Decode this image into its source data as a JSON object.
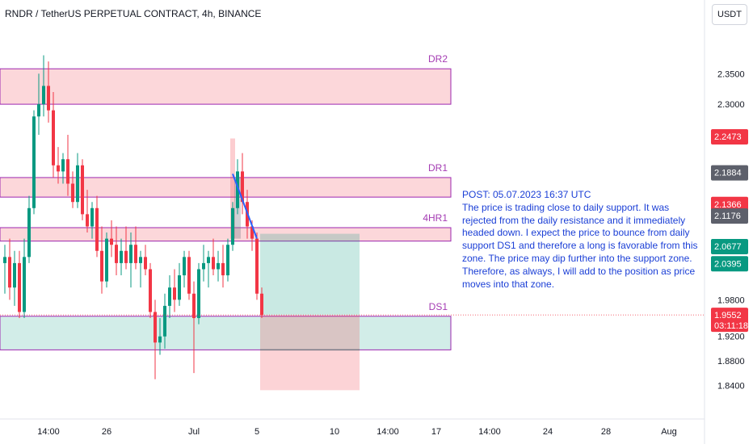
{
  "header": {
    "title": "RNDR / TetherUS PERPETUAL CONTRACT, 4h, BINANCE",
    "currency": "USDT"
  },
  "note": {
    "text": "POST: 05.07.2023 16:37 UTC\nThe price is trading close to daily support. It was rejected from the daily resistance and it immediately headed down. I expect the price to bounce from daily support DS1 and therefore a long is favorable from this zone. The price may dip further into the support zone. Therefore, as always, I will add to the position as price moves into that zone."
  },
  "chart_data": {
    "type": "candlestick",
    "symbol": "RNDR / TetherUS PERPETUAL CONTRACT",
    "interval": "4h",
    "exchange": "BINANCE",
    "ylim": [
      1.81,
      2.46
    ],
    "y_ticks": [
      "2.3500",
      "2.3000",
      "1.9800",
      "1.9200",
      "1.8800",
      "1.8400"
    ],
    "x_ticks": [
      {
        "label": "14:00",
        "t": 9
      },
      {
        "label": "26",
        "t": 21
      },
      {
        "label": "Jul",
        "t": 39
      },
      {
        "label": "5",
        "t": 52
      },
      {
        "label": "10",
        "t": 68
      },
      {
        "label": "14:00",
        "t": 79
      },
      {
        "label": "17",
        "t": 89
      },
      {
        "label": "14:00",
        "t": 100
      },
      {
        "label": "24",
        "t": 112
      },
      {
        "label": "28",
        "t": 124
      },
      {
        "label": "Aug",
        "t": 137
      }
    ],
    "candles": [
      {
        "t": 0,
        "o": 2.04,
        "h": 2.07,
        "l": 1.99,
        "c": 2.05
      },
      {
        "t": 1,
        "o": 2.05,
        "h": 2.08,
        "l": 1.98,
        "c": 2.0
      },
      {
        "t": 2,
        "o": 2.0,
        "h": 2.06,
        "l": 1.97,
        "c": 2.04
      },
      {
        "t": 3,
        "o": 2.04,
        "h": 2.06,
        "l": 1.95,
        "c": 1.96
      },
      {
        "t": 4,
        "o": 1.96,
        "h": 2.08,
        "l": 1.95,
        "c": 2.05
      },
      {
        "t": 5,
        "o": 2.05,
        "h": 2.15,
        "l": 2.04,
        "c": 2.13
      },
      {
        "t": 6,
        "o": 2.13,
        "h": 2.29,
        "l": 2.12,
        "c": 2.28
      },
      {
        "t": 7,
        "o": 2.28,
        "h": 2.35,
        "l": 2.25,
        "c": 2.3
      },
      {
        "t": 8,
        "o": 2.3,
        "h": 2.38,
        "l": 2.28,
        "c": 2.33
      },
      {
        "t": 9,
        "o": 2.33,
        "h": 2.37,
        "l": 2.27,
        "c": 2.29
      },
      {
        "t": 10,
        "o": 2.29,
        "h": 2.32,
        "l": 2.18,
        "c": 2.2
      },
      {
        "t": 11,
        "o": 2.2,
        "h": 2.23,
        "l": 2.17,
        "c": 2.19
      },
      {
        "t": 12,
        "o": 2.19,
        "h": 2.22,
        "l": 2.17,
        "c": 2.21
      },
      {
        "t": 13,
        "o": 2.21,
        "h": 2.25,
        "l": 2.15,
        "c": 2.17
      },
      {
        "t": 14,
        "o": 2.17,
        "h": 2.19,
        "l": 2.13,
        "c": 2.14
      },
      {
        "t": 15,
        "o": 2.14,
        "h": 2.22,
        "l": 2.13,
        "c": 2.2
      },
      {
        "t": 16,
        "o": 2.2,
        "h": 2.21,
        "l": 2.11,
        "c": 2.12
      },
      {
        "t": 17,
        "o": 2.12,
        "h": 2.16,
        "l": 2.09,
        "c": 2.1
      },
      {
        "t": 18,
        "o": 2.1,
        "h": 2.14,
        "l": 2.08,
        "c": 2.13
      },
      {
        "t": 19,
        "o": 2.13,
        "h": 2.15,
        "l": 2.05,
        "c": 2.06
      },
      {
        "t": 20,
        "o": 2.06,
        "h": 2.1,
        "l": 1.99,
        "c": 2.01
      },
      {
        "t": 21,
        "o": 2.01,
        "h": 2.09,
        "l": 2.0,
        "c": 2.08
      },
      {
        "t": 22,
        "o": 2.08,
        "h": 2.11,
        "l": 2.05,
        "c": 2.07
      },
      {
        "t": 23,
        "o": 2.07,
        "h": 2.1,
        "l": 2.02,
        "c": 2.04
      },
      {
        "t": 24,
        "o": 2.04,
        "h": 2.08,
        "l": 2.02,
        "c": 2.06
      },
      {
        "t": 25,
        "o": 2.06,
        "h": 2.1,
        "l": 2.03,
        "c": 2.04
      },
      {
        "t": 26,
        "o": 2.04,
        "h": 2.09,
        "l": 2.0,
        "c": 2.07
      },
      {
        "t": 27,
        "o": 2.07,
        "h": 2.1,
        "l": 2.03,
        "c": 2.04
      },
      {
        "t": 28,
        "o": 2.04,
        "h": 2.06,
        "l": 2.0,
        "c": 2.05
      },
      {
        "t": 29,
        "o": 2.05,
        "h": 2.07,
        "l": 2.02,
        "c": 2.03
      },
      {
        "t": 30,
        "o": 2.03,
        "h": 2.04,
        "l": 1.95,
        "c": 1.96
      },
      {
        "t": 31,
        "o": 1.96,
        "h": 1.98,
        "l": 1.85,
        "c": 1.91
      },
      {
        "t": 32,
        "o": 1.91,
        "h": 1.95,
        "l": 1.89,
        "c": 1.92
      },
      {
        "t": 33,
        "o": 1.92,
        "h": 1.99,
        "l": 1.9,
        "c": 1.97
      },
      {
        "t": 34,
        "o": 1.97,
        "h": 2.02,
        "l": 1.95,
        "c": 2.0
      },
      {
        "t": 35,
        "o": 2.0,
        "h": 2.03,
        "l": 1.96,
        "c": 1.98
      },
      {
        "t": 36,
        "o": 1.98,
        "h": 2.04,
        "l": 1.97,
        "c": 2.02
      },
      {
        "t": 37,
        "o": 2.02,
        "h": 2.06,
        "l": 2.0,
        "c": 2.05
      },
      {
        "t": 38,
        "o": 2.05,
        "h": 2.06,
        "l": 1.98,
        "c": 1.99
      },
      {
        "t": 39,
        "o": 1.99,
        "h": 2.01,
        "l": 1.86,
        "c": 1.95
      },
      {
        "t": 40,
        "o": 1.95,
        "h": 2.04,
        "l": 1.94,
        "c": 2.03
      },
      {
        "t": 41,
        "o": 2.03,
        "h": 2.07,
        "l": 2.01,
        "c": 2.04
      },
      {
        "t": 42,
        "o": 2.04,
        "h": 2.06,
        "l": 2.0,
        "c": 2.05
      },
      {
        "t": 43,
        "o": 2.05,
        "h": 2.08,
        "l": 2.02,
        "c": 2.03
      },
      {
        "t": 44,
        "o": 2.03,
        "h": 2.06,
        "l": 2.01,
        "c": 2.04
      },
      {
        "t": 45,
        "o": 2.04,
        "h": 2.07,
        "l": 2.0,
        "c": 2.02
      },
      {
        "t": 46,
        "o": 2.02,
        "h": 2.08,
        "l": 2.01,
        "c": 2.07
      },
      {
        "t": 47,
        "o": 2.07,
        "h": 2.14,
        "l": 2.06,
        "c": 2.13
      },
      {
        "t": 48,
        "o": 2.13,
        "h": 2.21,
        "l": 2.12,
        "c": 2.19
      },
      {
        "t": 49,
        "o": 2.19,
        "h": 2.22,
        "l": 2.12,
        "c": 2.14
      },
      {
        "t": 50,
        "o": 2.14,
        "h": 2.16,
        "l": 2.08,
        "c": 2.1
      },
      {
        "t": 51,
        "o": 2.1,
        "h": 2.11,
        "l": 2.06,
        "c": 2.08
      },
      {
        "t": 52,
        "o": 2.08,
        "h": 2.09,
        "l": 1.98,
        "c": 1.99
      },
      {
        "t": 53,
        "o": 1.99,
        "h": 2.0,
        "l": 1.95,
        "c": 1.955
      }
    ],
    "zones": [
      {
        "label": "DR2",
        "top": 2.358,
        "bottom": 2.3,
        "t_start": 0,
        "t_end": 90,
        "kind": "resistance"
      },
      {
        "label": "DR1",
        "top": 2.18,
        "bottom": 2.148,
        "t_start": 0,
        "t_end": 90,
        "kind": "resistance"
      },
      {
        "label": "4HR1",
        "top": 2.098,
        "bottom": 2.076,
        "t_start": 0,
        "t_end": 90,
        "kind": "resistance"
      },
      {
        "label": "DS1",
        "top": 1.953,
        "bottom": 1.898,
        "t_start": 0,
        "t_end": 90,
        "kind": "support"
      }
    ],
    "position": {
      "entry": 1.955,
      "target": 2.088,
      "stop": 1.832,
      "t_start": 53,
      "t_end": 72
    },
    "trend_line": [
      [
        47,
        2.186
      ],
      [
        52,
        2.08
      ]
    ],
    "price_badges": [
      {
        "label": "2.2473",
        "value": 2.2473,
        "color": "#f23645"
      },
      {
        "label": "2.1884",
        "value": 2.1884,
        "color": "#5d606b"
      },
      {
        "label": "2.1366",
        "value": 2.1366,
        "color": "#f23645"
      },
      {
        "label": "2.1176",
        "value": 2.1176,
        "color": "#5d606b"
      },
      {
        "label": "2.0677",
        "value": 2.0677,
        "color": "#089981"
      },
      {
        "label": "2.0395",
        "value": 2.0395,
        "color": "#089981"
      },
      {
        "label": "1.9552",
        "sub": "03:11:18",
        "value": 1.9552,
        "color": "#f23645"
      }
    ],
    "up_color": "#089981",
    "down_color": "#f23645",
    "zone_label_color": "#a43bb3",
    "note_color": "#1b3fd6"
  }
}
